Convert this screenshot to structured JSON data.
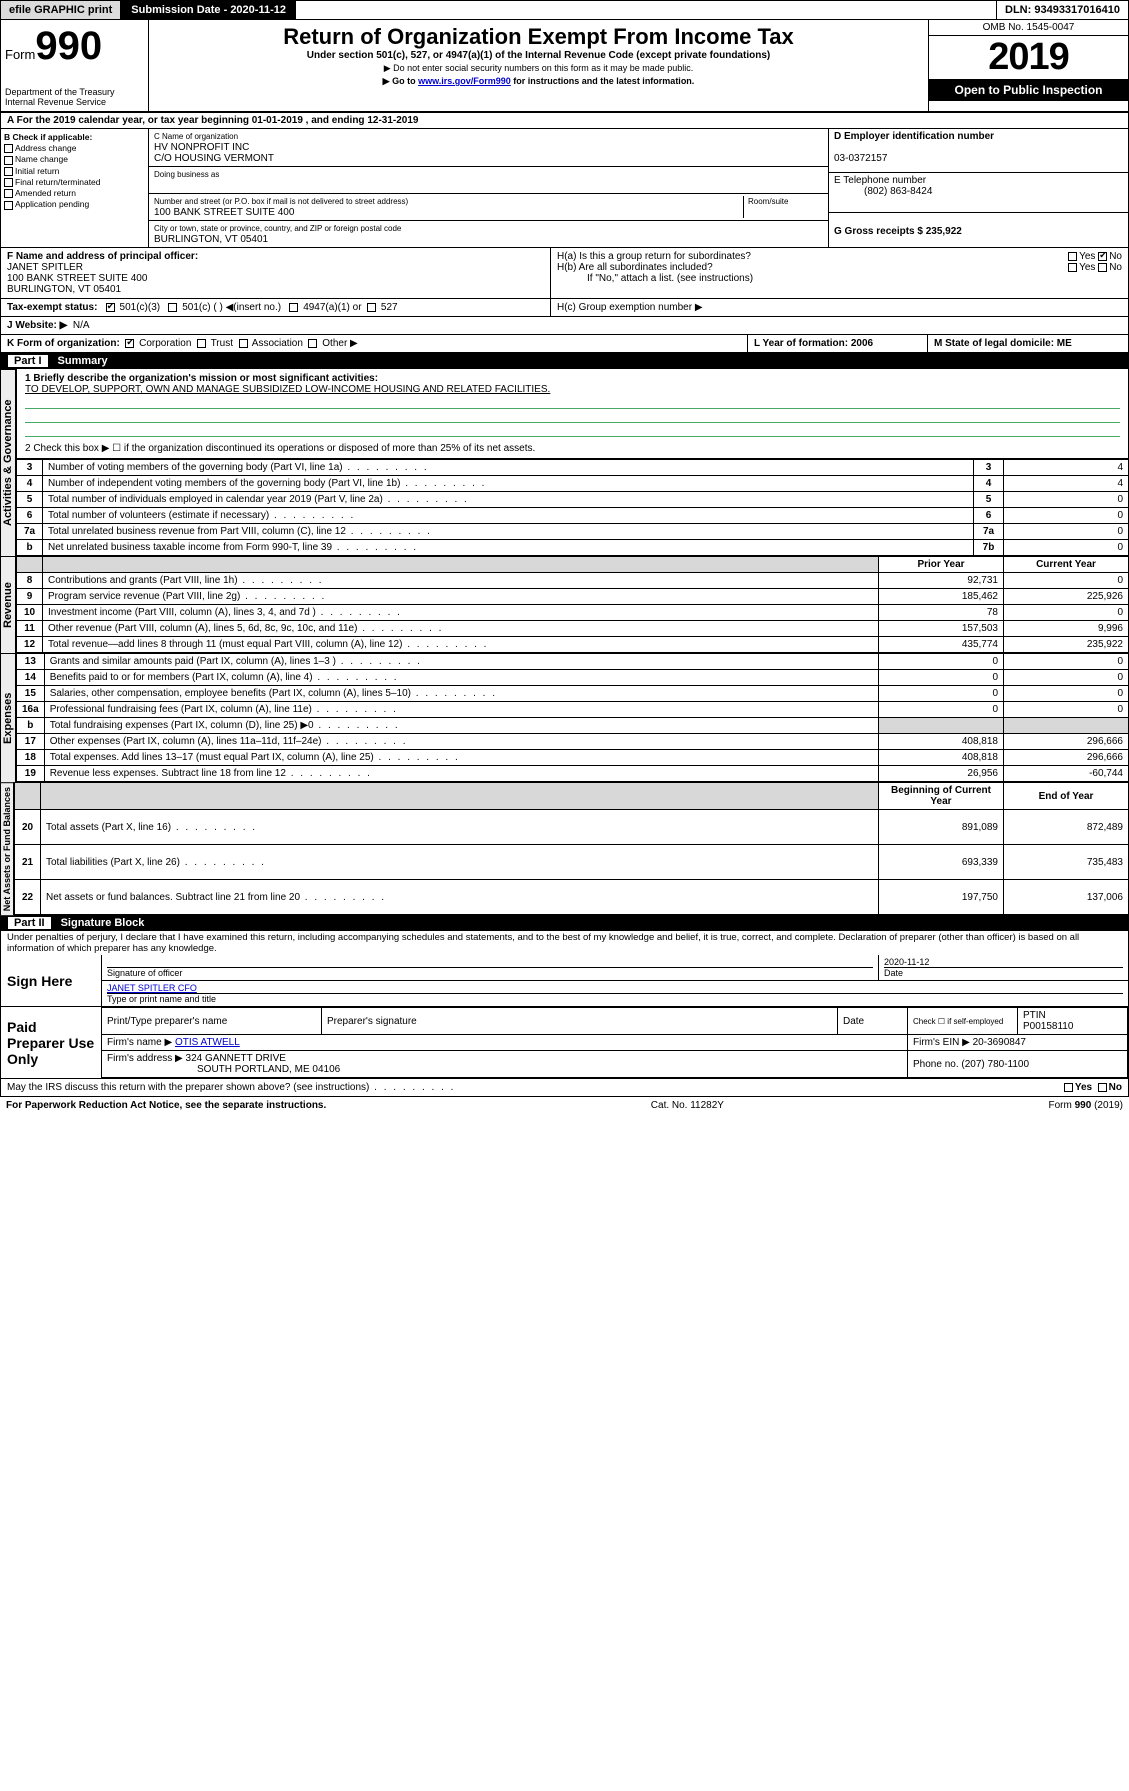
{
  "topbar": {
    "efile": "efile GRAPHIC print",
    "subdate_label": "Submission Date - 2020-11-12",
    "dln": "DLN: 93493317016410"
  },
  "header": {
    "form_word": "Form",
    "form_num": "990",
    "dept1": "Department of the Treasury",
    "dept2": "Internal Revenue Service",
    "title": "Return of Organization Exempt From Income Tax",
    "subtitle": "Under section 501(c), 527, or 4947(a)(1) of the Internal Revenue Code (except private foundations)",
    "instr1": "▶ Do not enter social security numbers on this form as it may be made public.",
    "instr2_a": "▶ Go to ",
    "instr2_link": "www.irs.gov/Form990",
    "instr2_b": " for instructions and the latest information.",
    "omb": "OMB No. 1545-0047",
    "year": "2019",
    "openpub": "Open to Public Inspection"
  },
  "ayr": "A For the 2019 calendar year, or tax year beginning 01-01-2019    , and ending 12-31-2019",
  "boxB": {
    "label": "B Check if applicable:",
    "items": [
      "Address change",
      "Name change",
      "Initial return",
      "Final return/terminated",
      "Amended return",
      "Application pending"
    ]
  },
  "boxC": {
    "label": "C Name of organization",
    "name1": "HV NONPROFIT INC",
    "name2": "C/O HOUSING VERMONT",
    "dba_label": "Doing business as",
    "addr_label": "Number and street (or P.O. box if mail is not delivered to street address)",
    "room_label": "Room/suite",
    "addr": "100 BANK STREET SUITE 400",
    "city_label": "City or town, state or province, country, and ZIP or foreign postal code",
    "city": "BURLINGTON, VT  05401"
  },
  "boxD": {
    "label": "D Employer identification number",
    "val": "03-0372157"
  },
  "boxE": {
    "label": "E Telephone number",
    "val": "(802) 863-8424"
  },
  "boxG": {
    "label": "G Gross receipts $ 235,922"
  },
  "boxF": {
    "label": "F Name and address of principal officer:",
    "name": "JANET SPITLER",
    "addr1": "100 BANK STREET SUITE 400",
    "addr2": "BURLINGTON, VT  05401"
  },
  "boxH": {
    "a": "H(a)  Is this a group return for subordinates?",
    "b": "H(b)  Are all subordinates included?",
    "bnote": "If \"No,\" attach a list. (see instructions)",
    "c": "H(c)  Group exemption number ▶",
    "yes": "Yes",
    "no": "No"
  },
  "taxstatus": {
    "label": "Tax-exempt status:",
    "o1": "501(c)(3)",
    "o2": "501(c) (   ) ◀(insert no.)",
    "o3": "4947(a)(1) or",
    "o4": "527"
  },
  "boxJ": {
    "label": "J   Website: ▶",
    "val": "N/A"
  },
  "boxK": {
    "label": "K Form of organization:",
    "o1": "Corporation",
    "o2": "Trust",
    "o3": "Association",
    "o4": "Other ▶"
  },
  "boxL": {
    "label": "L Year of formation: 2006"
  },
  "boxM": {
    "label": "M State of legal domicile: ME"
  },
  "part1": {
    "title": "Part I",
    "name": "Summary",
    "q1": "1  Briefly describe the organization's mission or most significant activities:",
    "mission": "TO DEVELOP, SUPPORT, OWN AND MANAGE SUBSIDIZED LOW-INCOME HOUSING AND RELATED FACILITIES.",
    "q2": "2   Check this box ▶ ☐  if the organization discontinued its operations or disposed of more than 25% of its net assets.",
    "sidelabels": {
      "a": "Activities & Governance",
      "r": "Revenue",
      "e": "Expenses",
      "n": "Net Assets or Fund Balances"
    },
    "govrows": [
      {
        "n": "3",
        "t": "Number of voting members of the governing body (Part VI, line 1a)",
        "v": "4"
      },
      {
        "n": "4",
        "t": "Number of independent voting members of the governing body (Part VI, line 1b)",
        "v": "4"
      },
      {
        "n": "5",
        "t": "Total number of individuals employed in calendar year 2019 (Part V, line 2a)",
        "v": "0"
      },
      {
        "n": "6",
        "t": "Total number of volunteers (estimate if necessary)",
        "v": "0"
      },
      {
        "n": "7a",
        "t": "Total unrelated business revenue from Part VIII, column (C), line 12",
        "v": "0"
      },
      {
        "n": "b",
        "t": "Net unrelated business taxable income from Form 990-T, line 39",
        "rn": "7b",
        "v": "0"
      }
    ],
    "colhead_prior": "Prior Year",
    "colhead_curr": "Current Year",
    "revrows": [
      {
        "n": "8",
        "t": "Contributions and grants (Part VIII, line 1h)",
        "p": "92,731",
        "c": "0"
      },
      {
        "n": "9",
        "t": "Program service revenue (Part VIII, line 2g)",
        "p": "185,462",
        "c": "225,926"
      },
      {
        "n": "10",
        "t": "Investment income (Part VIII, column (A), lines 3, 4, and 7d )",
        "p": "78",
        "c": "0"
      },
      {
        "n": "11",
        "t": "Other revenue (Part VIII, column (A), lines 5, 6d, 8c, 9c, 10c, and 11e)",
        "p": "157,503",
        "c": "9,996"
      },
      {
        "n": "12",
        "t": "Total revenue—add lines 8 through 11 (must equal Part VIII, column (A), line 12)",
        "p": "435,774",
        "c": "235,922"
      }
    ],
    "exprows": [
      {
        "n": "13",
        "t": "Grants and similar amounts paid (Part IX, column (A), lines 1–3 )",
        "p": "0",
        "c": "0"
      },
      {
        "n": "14",
        "t": "Benefits paid to or for members (Part IX, column (A), line 4)",
        "p": "0",
        "c": "0"
      },
      {
        "n": "15",
        "t": "Salaries, other compensation, employee benefits (Part IX, column (A), lines 5–10)",
        "p": "0",
        "c": "0"
      },
      {
        "n": "16a",
        "t": "Professional fundraising fees (Part IX, column (A), line 11e)",
        "p": "0",
        "c": "0"
      },
      {
        "n": "b",
        "t": "Total fundraising expenses (Part IX, column (D), line 25) ▶0",
        "p": "",
        "c": "",
        "shade": true
      },
      {
        "n": "17",
        "t": "Other expenses (Part IX, column (A), lines 11a–11d, 11f–24e)",
        "p": "408,818",
        "c": "296,666"
      },
      {
        "n": "18",
        "t": "Total expenses. Add lines 13–17 (must equal Part IX, column (A), line 25)",
        "p": "408,818",
        "c": "296,666"
      },
      {
        "n": "19",
        "t": "Revenue less expenses. Subtract line 18 from line 12",
        "p": "26,956",
        "c": "-60,744"
      }
    ],
    "colhead_beg": "Beginning of Current Year",
    "colhead_end": "End of Year",
    "netrows": [
      {
        "n": "20",
        "t": "Total assets (Part X, line 16)",
        "p": "891,089",
        "c": "872,489"
      },
      {
        "n": "21",
        "t": "Total liabilities (Part X, line 26)",
        "p": "693,339",
        "c": "735,483"
      },
      {
        "n": "22",
        "t": "Net assets or fund balances. Subtract line 21 from line 20",
        "p": "197,750",
        "c": "137,006"
      }
    ]
  },
  "part2": {
    "title": "Part II",
    "name": "Signature Block",
    "decl": "Under penalties of perjury, I declare that I have examined this return, including accompanying schedules and statements, and to the best of my knowledge and belief, it is true, correct, and complete. Declaration of preparer (other than officer) is based on all information of which preparer has any knowledge."
  },
  "sign": {
    "here": "Sign Here",
    "sigoff": "Signature of officer",
    "date": "2020-11-12",
    "datelab": "Date",
    "name": "JANET SPITLER  CFO",
    "namelab": "Type or print name and title"
  },
  "paid": {
    "label": "Paid Preparer Use Only",
    "h1": "Print/Type preparer's name",
    "h2": "Preparer's signature",
    "h3": "Date",
    "h4a": "Check ☐ if self-employed",
    "h5": "PTIN",
    "ptin": "P00158110",
    "firmname_l": "Firm's name    ▶",
    "firmname": "OTIS ATWELL",
    "firmein_l": "Firm's EIN ▶",
    "firmein": "20-3690847",
    "firmaddr_l": "Firm's address ▶",
    "firmaddr1": "324 GANNETT DRIVE",
    "firmaddr2": "SOUTH PORTLAND, ME  04106",
    "phone_l": "Phone no.",
    "phone": "(207) 780-1100"
  },
  "discuss": "May the IRS discuss this return with the preparer shown above? (see instructions)",
  "footer": {
    "pra": "For Paperwork Reduction Act Notice, see the separate instructions.",
    "cat": "Cat. No. 11282Y",
    "form": "Form 990 (2019)"
  }
}
